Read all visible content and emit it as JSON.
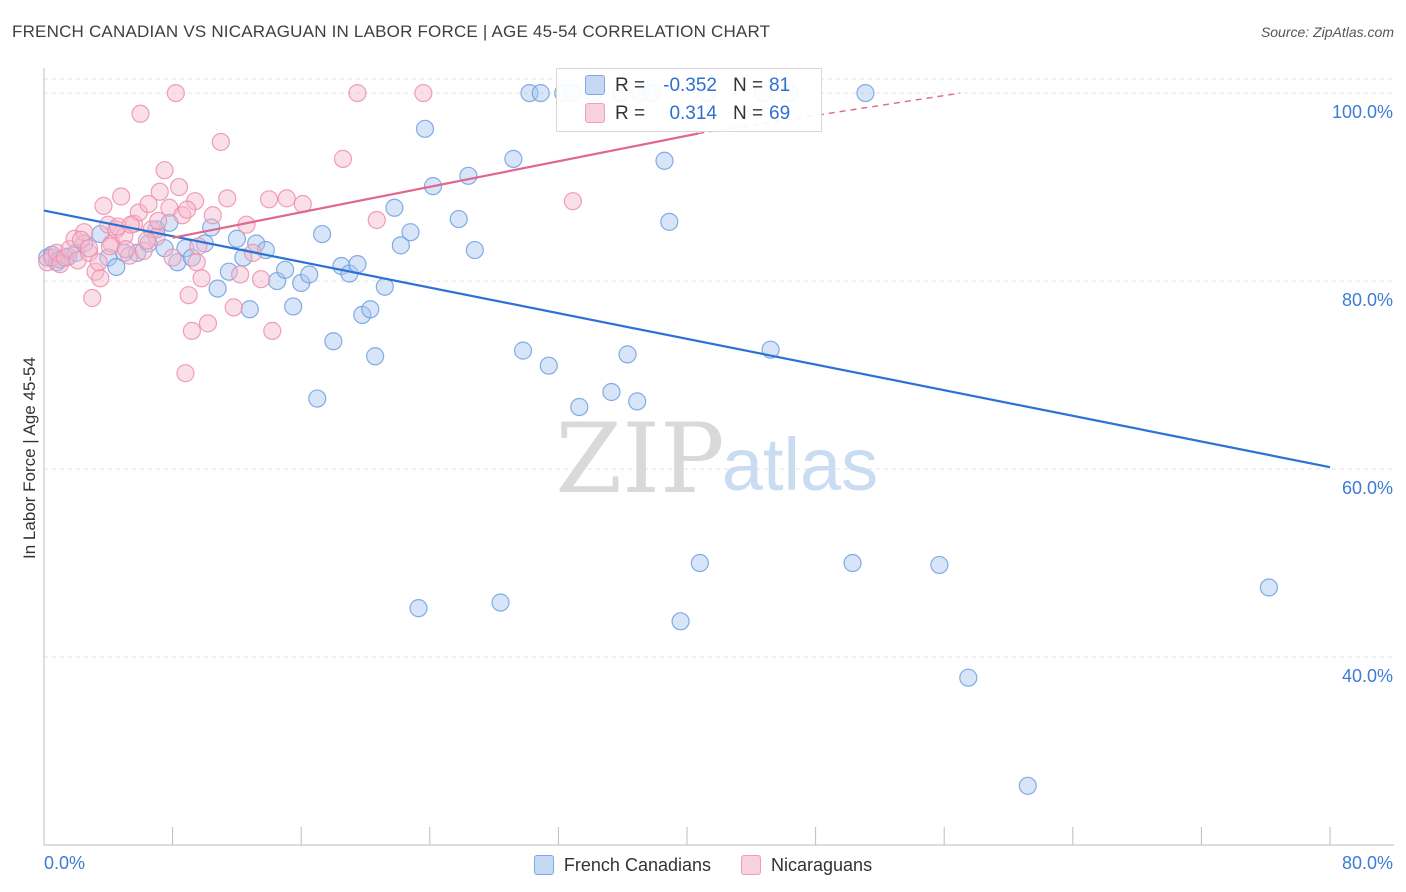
{
  "title": "FRENCH CANADIAN VS NICARAGUAN IN LABOR FORCE | AGE 45-54 CORRELATION CHART",
  "source": "Source: ZipAtlas.com",
  "watermark": {
    "zip": "ZIP",
    "atlas": "atlas"
  },
  "stats": [
    {
      "r_label": "R =",
      "r_value": "-0.352",
      "n_label": "N =",
      "n_value": "81",
      "color": "#a8c6ef"
    },
    {
      "r_label": "R =",
      "r_value": "0.314",
      "n_label": "N =",
      "n_value": "69",
      "color": "#f6b8cb"
    }
  ],
  "legend": [
    {
      "label": "French Canadians",
      "color": "#a8c6ef"
    },
    {
      "label": "Nicaraguans",
      "color": "#f6b8cb"
    }
  ],
  "chart_data": {
    "type": "scatter",
    "ylabel": "In Labor Force | Age 45-54",
    "xlim": [
      0,
      80
    ],
    "ylim": [
      20,
      101.5
    ],
    "x_tick_labels": [
      "0.0%",
      "80.0%"
    ],
    "y_ticks": [
      40,
      60,
      80,
      100
    ],
    "y_tick_labels": [
      "40.0%",
      "60.0%",
      "80.0%",
      "100.0%"
    ],
    "grid": true,
    "series": [
      {
        "name": "French Canadians",
        "color": "#a8c6ef",
        "stroke": "#6f9fe0",
        "trend_color": "#2a72d4",
        "trend": {
          "x0": 0,
          "y0": 87.5,
          "x1": 80,
          "y1": 60.2
        },
        "points": [
          [
            0.2,
            82.5
          ],
          [
            0.5,
            82.8
          ],
          [
            0.8,
            82.0
          ],
          [
            1.0,
            82.3
          ],
          [
            1.5,
            82.6
          ],
          [
            2.0,
            83.0
          ],
          [
            2.5,
            84.0
          ],
          [
            3.5,
            85.0
          ],
          [
            4.0,
            82.5
          ],
          [
            4.5,
            81.5
          ],
          [
            5.0,
            83.0
          ],
          [
            5.8,
            83.0
          ],
          [
            6.5,
            84.0
          ],
          [
            7.0,
            85.5
          ],
          [
            7.5,
            83.5
          ],
          [
            7.8,
            86.2
          ],
          [
            8.3,
            82.0
          ],
          [
            8.8,
            83.5
          ],
          [
            9.2,
            82.5
          ],
          [
            10.0,
            84.0
          ],
          [
            10.4,
            85.7
          ],
          [
            10.8,
            79.2
          ],
          [
            11.5,
            81.0
          ],
          [
            12.0,
            84.5
          ],
          [
            12.4,
            82.5
          ],
          [
            12.8,
            77.0
          ],
          [
            13.2,
            84.0
          ],
          [
            13.8,
            83.3
          ],
          [
            14.5,
            80.0
          ],
          [
            15.0,
            81.2
          ],
          [
            15.5,
            77.3
          ],
          [
            16.0,
            79.8
          ],
          [
            16.5,
            80.7
          ],
          [
            17.0,
            67.5
          ],
          [
            17.3,
            85.0
          ],
          [
            18.0,
            73.6
          ],
          [
            18.5,
            81.6
          ],
          [
            19.0,
            80.8
          ],
          [
            19.5,
            81.8
          ],
          [
            19.8,
            76.4
          ],
          [
            20.3,
            77.0
          ],
          [
            20.6,
            72.0
          ],
          [
            21.2,
            79.4
          ],
          [
            21.8,
            87.8
          ],
          [
            22.2,
            83.8
          ],
          [
            22.8,
            85.2
          ],
          [
            23.3,
            45.2
          ],
          [
            23.7,
            96.2
          ],
          [
            24.2,
            90.1
          ],
          [
            25.8,
            86.6
          ],
          [
            26.4,
            91.2
          ],
          [
            26.8,
            83.3
          ],
          [
            28.4,
            45.8
          ],
          [
            29.2,
            93.0
          ],
          [
            29.8,
            72.6
          ],
          [
            30.2,
            100
          ],
          [
            30.9,
            100
          ],
          [
            31.4,
            71.0
          ],
          [
            32.3,
            100
          ],
          [
            32.9,
            100
          ],
          [
            33.3,
            66.6
          ],
          [
            34.2,
            100
          ],
          [
            35.3,
            68.2
          ],
          [
            35.9,
            100
          ],
          [
            36.3,
            72.2
          ],
          [
            36.9,
            67.2
          ],
          [
            37.1,
            100
          ],
          [
            37.8,
            100
          ],
          [
            38.6,
            92.8
          ],
          [
            38.9,
            86.3
          ],
          [
            39.6,
            43.8
          ],
          [
            40.8,
            50.0
          ],
          [
            41.2,
            100
          ],
          [
            44.7,
            100
          ],
          [
            45.2,
            72.7
          ],
          [
            46.4,
            100
          ],
          [
            50.3,
            50.0
          ],
          [
            51.1,
            100
          ],
          [
            55.7,
            49.8
          ],
          [
            57.5,
            37.8
          ],
          [
            61.2,
            26.3
          ],
          [
            76.2,
            47.4
          ]
        ]
      },
      {
        "name": "Nicaraguans",
        "color": "#f6b8cb",
        "stroke": "#ec8fad",
        "trend_color": "#e0678e",
        "trend": {
          "x0": 8,
          "y0": 84.6,
          "x1": 40.7,
          "y1": 95.7
        },
        "trend_dashed": {
          "x0": 40.7,
          "y0": 95.7,
          "x1": 57,
          "y1": 100
        },
        "points": [
          [
            0.2,
            82.0
          ],
          [
            0.5,
            82.5
          ],
          [
            0.8,
            83.0
          ],
          [
            1.0,
            81.8
          ],
          [
            1.3,
            82.5
          ],
          [
            1.6,
            83.4
          ],
          [
            1.9,
            84.5
          ],
          [
            2.1,
            82.2
          ],
          [
            2.5,
            85.2
          ],
          [
            2.8,
            83.0
          ],
          [
            3.0,
            78.2
          ],
          [
            3.2,
            81.0
          ],
          [
            3.5,
            80.3
          ],
          [
            3.7,
            88.0
          ],
          [
            4.0,
            86.0
          ],
          [
            4.2,
            84.0
          ],
          [
            4.5,
            85.5
          ],
          [
            4.8,
            89.0
          ],
          [
            5.0,
            84.8
          ],
          [
            5.3,
            82.7
          ],
          [
            5.6,
            86.1
          ],
          [
            5.9,
            87.3
          ],
          [
            6.0,
            97.8
          ],
          [
            6.2,
            83.2
          ],
          [
            6.5,
            88.2
          ],
          [
            6.7,
            85.5
          ],
          [
            7.0,
            84.7
          ],
          [
            7.2,
            89.5
          ],
          [
            7.5,
            91.8
          ],
          [
            7.8,
            87.8
          ],
          [
            8.0,
            82.5
          ],
          [
            8.2,
            100
          ],
          [
            8.4,
            90.0
          ],
          [
            8.6,
            87.0
          ],
          [
            8.8,
            70.2
          ],
          [
            9.0,
            78.5
          ],
          [
            9.2,
            74.7
          ],
          [
            9.4,
            88.5
          ],
          [
            9.6,
            83.7
          ],
          [
            9.8,
            80.3
          ],
          [
            10.2,
            75.5
          ],
          [
            10.5,
            87.0
          ],
          [
            11.0,
            94.8
          ],
          [
            11.4,
            88.8
          ],
          [
            11.8,
            77.2
          ],
          [
            12.2,
            80.7
          ],
          [
            12.6,
            86.0
          ],
          [
            13.0,
            83.0
          ],
          [
            13.5,
            80.2
          ],
          [
            14.0,
            88.7
          ],
          [
            14.2,
            74.7
          ],
          [
            15.1,
            88.8
          ],
          [
            16.1,
            88.2
          ],
          [
            18.6,
            93.0
          ],
          [
            19.5,
            100
          ],
          [
            20.7,
            86.5
          ],
          [
            23.6,
            100
          ],
          [
            32.9,
            88.5
          ],
          [
            2.3,
            84.4
          ],
          [
            2.8,
            83.5
          ],
          [
            3.4,
            82.0
          ],
          [
            4.1,
            83.7
          ],
          [
            4.6,
            85.8
          ],
          [
            5.1,
            83.4
          ],
          [
            5.4,
            86.0
          ],
          [
            6.4,
            84.3
          ],
          [
            7.1,
            86.4
          ],
          [
            8.9,
            87.6
          ],
          [
            9.5,
            82.0
          ]
        ]
      }
    ]
  }
}
